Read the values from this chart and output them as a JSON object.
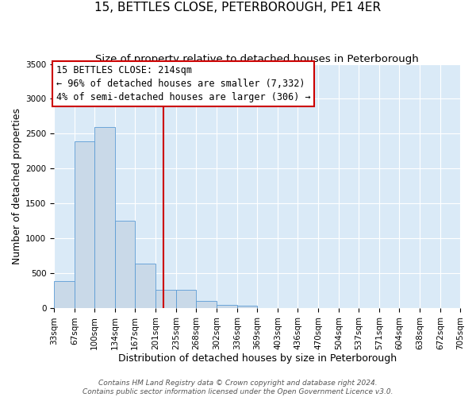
{
  "title": "15, BETTLES CLOSE, PETERBOROUGH, PE1 4ER",
  "subtitle": "Size of property relative to detached houses in Peterborough",
  "xlabel": "Distribution of detached houses by size in Peterborough",
  "ylabel": "Number of detached properties",
  "bar_color": "#c9d9e8",
  "bar_edge_color": "#5b9bd5",
  "background_color": "#daeaf7",
  "grid_color": "#ffffff",
  "vline_x": 214,
  "vline_color": "#cc0000",
  "annotation_box_color": "#cc0000",
  "annotation_lines": [
    "15 BETTLES CLOSE: 214sqm",
    "← 96% of detached houses are smaller (7,332)",
    "4% of semi-detached houses are larger (306) →"
  ],
  "bin_edges": [
    33,
    67,
    100,
    134,
    167,
    201,
    235,
    268,
    302,
    336,
    369,
    403,
    436,
    470,
    504,
    537,
    571,
    604,
    638,
    672,
    705
  ],
  "bin_values": [
    390,
    2390,
    2600,
    1250,
    640,
    270,
    270,
    105,
    55,
    35,
    0,
    0,
    0,
    0,
    0,
    0,
    0,
    0,
    0,
    0
  ],
  "ylim": [
    0,
    3500
  ],
  "yticks": [
    0,
    500,
    1000,
    1500,
    2000,
    2500,
    3000,
    3500
  ],
  "footer_lines": [
    "Contains HM Land Registry data © Crown copyright and database right 2024.",
    "Contains public sector information licensed under the Open Government Licence v3.0."
  ],
  "title_fontsize": 11,
  "subtitle_fontsize": 9.5,
  "axis_label_fontsize": 9,
  "tick_fontsize": 7.5,
  "annotation_fontsize": 8.5,
  "footer_fontsize": 6.5
}
